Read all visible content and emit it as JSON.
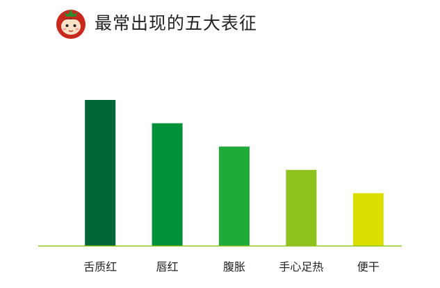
{
  "header": {
    "title": "最常出现的五大表征",
    "logo_icon": "tomato-mascot-icon"
  },
  "chart_data": {
    "type": "bar",
    "title": "最常出现的五大表征",
    "xlabel": "",
    "ylabel": "",
    "categories": [
      "舌质红",
      "唇红",
      "腹胀",
      "手心足热",
      "便干"
    ],
    "values": [
      5,
      4.2,
      3.4,
      2.6,
      1.8
    ],
    "ylim": [
      0,
      5
    ],
    "grid": false,
    "legend": "none",
    "colors": [
      "#006837",
      "#009139",
      "#1FAA39",
      "#8DC21F",
      "#D9DF00"
    ],
    "axis_color": "#8DC21F"
  }
}
